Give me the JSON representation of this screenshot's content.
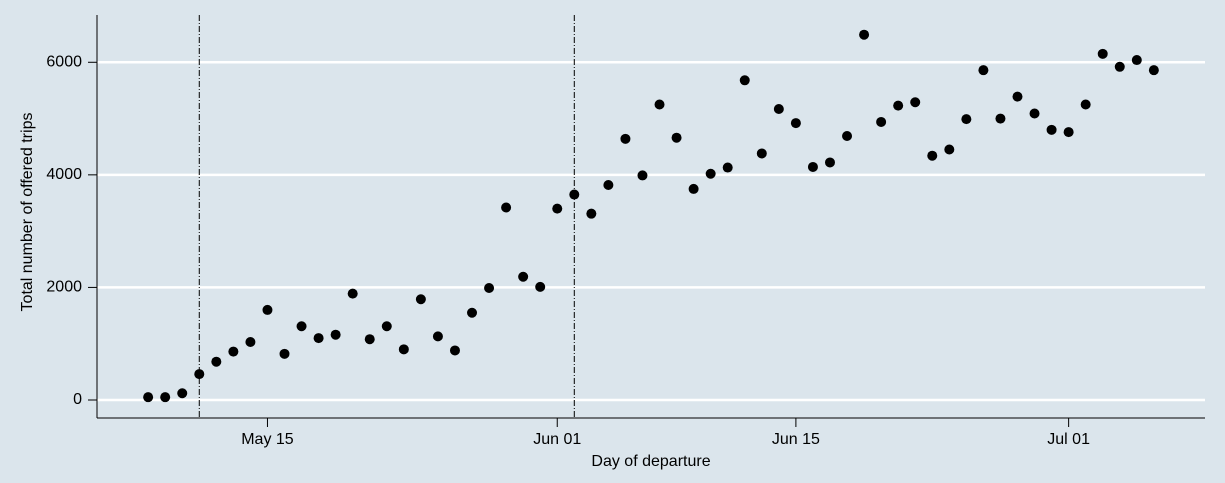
{
  "chart_data": {
    "type": "scatter",
    "y_label": "Total number of offered trips",
    "x_label": "Day of departure",
    "x": [
      "05-08",
      "05-09",
      "05-10",
      "05-11",
      "05-12",
      "05-13",
      "05-14",
      "05-15",
      "05-16",
      "05-17",
      "05-18",
      "05-19",
      "05-20",
      "05-21",
      "05-22",
      "05-23",
      "05-24",
      "05-25",
      "05-26",
      "05-27",
      "05-28",
      "05-29",
      "05-30",
      "05-31",
      "06-01",
      "06-02",
      "06-03",
      "06-04",
      "06-05",
      "06-06",
      "06-07",
      "06-08",
      "06-09",
      "06-10",
      "06-11",
      "06-12",
      "06-13",
      "06-14",
      "06-15",
      "06-16",
      "06-17",
      "06-18",
      "06-19",
      "06-20",
      "06-21",
      "06-22",
      "06-23",
      "06-24",
      "06-25",
      "06-26",
      "06-27",
      "06-28",
      "06-29",
      "06-30",
      "07-01",
      "07-02",
      "07-03",
      "07-04",
      "07-05",
      "07-06"
    ],
    "values": [
      50,
      50,
      120,
      460,
      680,
      860,
      1030,
      1600,
      820,
      1310,
      1100,
      1160,
      1890,
      1080,
      1310,
      900,
      1790,
      1130,
      880,
      1550,
      1990,
      3420,
      2190,
      2010,
      3400,
      3650,
      3310,
      3820,
      4640,
      3990,
      5250,
      4660,
      3750,
      4020,
      4130,
      5680,
      4380,
      5170,
      4920,
      4140,
      4220,
      4690,
      6490,
      4940,
      5230,
      5290,
      4340,
      4450,
      4990,
      5860,
      5000,
      5390,
      5090,
      4800,
      4760,
      5250,
      6150,
      5920,
      6040,
      5860
    ],
    "color": "#000000",
    "xlim": [
      "05-05",
      "07-09"
    ],
    "xticks": [
      {
        "value": "05-15",
        "label": "May 15"
      },
      {
        "value": "06-01",
        "label": "Jun 01"
      },
      {
        "value": "06-15",
        "label": "Jun 15"
      },
      {
        "value": "07-01",
        "label": "Jul 01"
      }
    ],
    "ylim": [
      -320,
      6840
    ],
    "yticks": [
      0,
      2000,
      4000,
      6000
    ],
    "grid": true,
    "vlines": [
      "05-11",
      "06-02"
    ]
  }
}
